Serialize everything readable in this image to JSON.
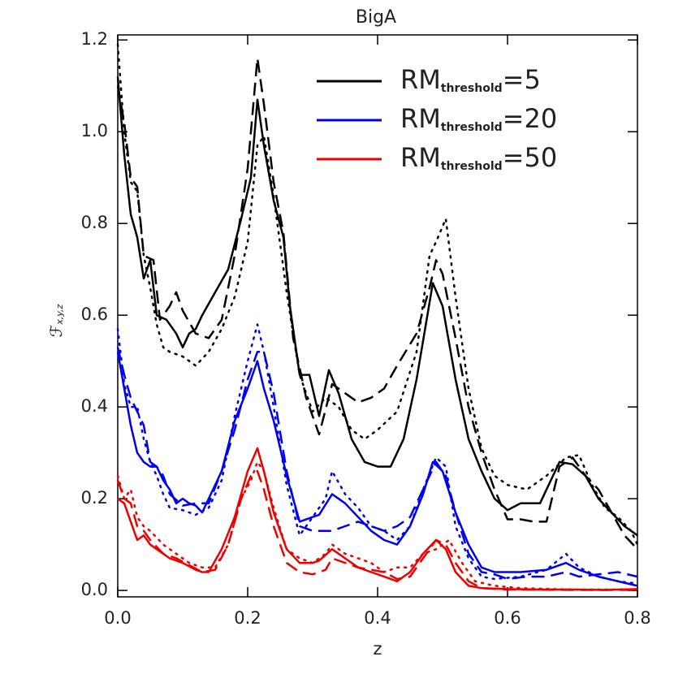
{
  "chart_data": {
    "type": "line",
    "title": "BigA",
    "xlabel": "z",
    "ylabel": [
      "ℱ",
      "x,y,z"
    ],
    "xlim": [
      0,
      0.8
    ],
    "xticks": [
      {
        "value": 0,
        "label": "0.0"
      },
      0.2,
      0.4,
      0.6,
      0.8
    ],
    "ylim": [
      -0.014,
      1.211
    ],
    "yticks": [
      {
        "value": 0,
        "label": "0.0"
      },
      0.2,
      0.4,
      0.6,
      0.8,
      {
        "value": 1,
        "label": "1.0"
      },
      1.2
    ],
    "grid": false,
    "legend": "upper right",
    "series": [
      {
        "name": [
          "RM",
          "threshold",
          "=5"
        ],
        "color": "#000000",
        "style": "solid",
        "x": [
          0,
          0.01,
          0.02,
          0.03,
          0.04,
          0.05,
          0.06,
          0.075,
          0.09,
          0.1,
          0.11,
          0.12,
          0.13,
          0.15,
          0.17,
          0.19,
          0.205,
          0.215,
          0.225,
          0.24,
          0.255,
          0.265,
          0.28,
          0.295,
          0.31,
          0.325,
          0.34,
          0.36,
          0.38,
          0.4,
          0.42,
          0.44,
          0.46,
          0.485,
          0.5,
          0.52,
          0.54,
          0.56,
          0.58,
          0.6,
          0.62,
          0.65,
          0.68,
          0.7,
          0.72,
          0.74,
          0.76,
          0.78,
          0.8
        ],
        "values": [
          1.12,
          0.95,
          0.82,
          0.77,
          0.68,
          0.72,
          0.6,
          0.59,
          0.56,
          0.53,
          0.56,
          0.57,
          0.6,
          0.65,
          0.7,
          0.81,
          0.9,
          1.07,
          0.97,
          0.85,
          0.77,
          0.62,
          0.47,
          0.47,
          0.38,
          0.48,
          0.43,
          0.33,
          0.28,
          0.27,
          0.27,
          0.33,
          0.46,
          0.67,
          0.62,
          0.46,
          0.33,
          0.26,
          0.2,
          0.175,
          0.19,
          0.19,
          0.28,
          0.275,
          0.25,
          0.2,
          0.17,
          0.14,
          0.12
        ]
      },
      {
        "color": "#000000",
        "style": "dashed",
        "x": [
          0,
          0.01,
          0.02,
          0.03,
          0.04,
          0.055,
          0.065,
          0.08,
          0.09,
          0.1,
          0.12,
          0.14,
          0.16,
          0.18,
          0.2,
          0.215,
          0.225,
          0.24,
          0.255,
          0.27,
          0.29,
          0.31,
          0.33,
          0.35,
          0.37,
          0.39,
          0.41,
          0.43,
          0.46,
          0.48,
          0.49,
          0.5,
          0.52,
          0.54,
          0.56,
          0.58,
          0.6,
          0.62,
          0.64,
          0.66,
          0.68,
          0.7,
          0.72,
          0.74,
          0.76,
          0.78,
          0.8
        ],
        "values": [
          1.1,
          1.02,
          0.9,
          0.88,
          0.73,
          0.72,
          0.59,
          0.62,
          0.65,
          0.61,
          0.56,
          0.55,
          0.59,
          0.73,
          0.92,
          1.16,
          1.06,
          0.89,
          0.78,
          0.55,
          0.42,
          0.34,
          0.45,
          0.43,
          0.41,
          0.42,
          0.44,
          0.49,
          0.56,
          0.66,
          0.72,
          0.69,
          0.55,
          0.4,
          0.3,
          0.22,
          0.155,
          0.155,
          0.15,
          0.15,
          0.27,
          0.29,
          0.25,
          0.22,
          0.17,
          0.12,
          0.09
        ]
      },
      {
        "color": "#000000",
        "style": "dotted",
        "x": [
          0,
          0.01,
          0.02,
          0.03,
          0.04,
          0.05,
          0.06,
          0.07,
          0.08,
          0.1,
          0.12,
          0.14,
          0.16,
          0.18,
          0.2,
          0.215,
          0.225,
          0.24,
          0.26,
          0.28,
          0.3,
          0.32,
          0.34,
          0.36,
          0.38,
          0.4,
          0.43,
          0.46,
          0.48,
          0.49,
          0.505,
          0.52,
          0.54,
          0.56,
          0.58,
          0.6,
          0.63,
          0.66,
          0.69,
          0.71,
          0.73,
          0.75,
          0.77,
          0.79,
          0.8
        ],
        "values": [
          1.19,
          1.0,
          0.89,
          0.87,
          0.73,
          0.66,
          0.58,
          0.53,
          0.52,
          0.51,
          0.49,
          0.52,
          0.57,
          0.64,
          0.76,
          0.97,
          0.99,
          0.86,
          0.65,
          0.47,
          0.39,
          0.42,
          0.4,
          0.35,
          0.33,
          0.35,
          0.39,
          0.52,
          0.73,
          0.76,
          0.81,
          0.64,
          0.44,
          0.31,
          0.25,
          0.23,
          0.22,
          0.25,
          0.29,
          0.295,
          0.23,
          0.18,
          0.16,
          0.13,
          0.1
        ]
      },
      {
        "name": [
          "RM",
          "threshold",
          "=20"
        ],
        "color": "#0000ee",
        "style": "solid",
        "x": [
          0,
          0.01,
          0.02,
          0.03,
          0.04,
          0.05,
          0.06,
          0.07,
          0.08,
          0.09,
          0.1,
          0.11,
          0.12,
          0.13,
          0.14,
          0.16,
          0.18,
          0.2,
          0.215,
          0.225,
          0.24,
          0.26,
          0.28,
          0.3,
          0.31,
          0.33,
          0.35,
          0.37,
          0.39,
          0.41,
          0.43,
          0.45,
          0.47,
          0.485,
          0.5,
          0.52,
          0.54,
          0.56,
          0.58,
          0.62,
          0.66,
          0.69,
          0.71,
          0.74,
          0.77,
          0.8
        ],
        "values": [
          0.52,
          0.44,
          0.36,
          0.3,
          0.28,
          0.27,
          0.27,
          0.24,
          0.22,
          0.19,
          0.2,
          0.19,
          0.185,
          0.17,
          0.2,
          0.26,
          0.37,
          0.44,
          0.5,
          0.44,
          0.37,
          0.25,
          0.15,
          0.16,
          0.165,
          0.21,
          0.19,
          0.16,
          0.13,
          0.11,
          0.1,
          0.14,
          0.21,
          0.28,
          0.26,
          0.17,
          0.1,
          0.05,
          0.04,
          0.04,
          0.045,
          0.06,
          0.045,
          0.03,
          0.02,
          0.01
        ]
      },
      {
        "color": "#0000ee",
        "style": "dashed",
        "x": [
          0,
          0.01,
          0.02,
          0.03,
          0.04,
          0.05,
          0.06,
          0.07,
          0.08,
          0.1,
          0.12,
          0.14,
          0.16,
          0.18,
          0.2,
          0.215,
          0.225,
          0.24,
          0.26,
          0.28,
          0.3,
          0.32,
          0.33,
          0.35,
          0.37,
          0.39,
          0.41,
          0.43,
          0.45,
          0.47,
          0.49,
          0.505,
          0.52,
          0.54,
          0.56,
          0.58,
          0.6,
          0.63,
          0.66,
          0.69,
          0.71,
          0.74,
          0.77,
          0.8
        ],
        "values": [
          0.53,
          0.47,
          0.42,
          0.39,
          0.36,
          0.28,
          0.27,
          0.25,
          0.21,
          0.185,
          0.19,
          0.19,
          0.26,
          0.35,
          0.46,
          0.52,
          0.52,
          0.43,
          0.26,
          0.14,
          0.13,
          0.13,
          0.13,
          0.14,
          0.15,
          0.14,
          0.13,
          0.14,
          0.16,
          0.22,
          0.28,
          0.25,
          0.17,
          0.08,
          0.04,
          0.035,
          0.025,
          0.03,
          0.03,
          0.04,
          0.03,
          0.035,
          0.04,
          0.03
        ]
      },
      {
        "color": "#0000ee",
        "style": "dotted",
        "x": [
          0,
          0.01,
          0.02,
          0.03,
          0.04,
          0.05,
          0.06,
          0.07,
          0.08,
          0.1,
          0.12,
          0.14,
          0.16,
          0.18,
          0.2,
          0.215,
          0.225,
          0.24,
          0.26,
          0.28,
          0.3,
          0.32,
          0.33,
          0.35,
          0.37,
          0.39,
          0.41,
          0.43,
          0.45,
          0.47,
          0.49,
          0.505,
          0.52,
          0.54,
          0.56,
          0.58,
          0.62,
          0.66,
          0.69,
          0.71,
          0.74,
          0.77,
          0.8
        ],
        "values": [
          0.57,
          0.45,
          0.4,
          0.4,
          0.33,
          0.28,
          0.25,
          0.21,
          0.18,
          0.175,
          0.165,
          0.18,
          0.24,
          0.38,
          0.5,
          0.58,
          0.52,
          0.4,
          0.23,
          0.12,
          0.16,
          0.2,
          0.26,
          0.21,
          0.18,
          0.14,
          0.13,
          0.11,
          0.14,
          0.22,
          0.29,
          0.27,
          0.14,
          0.07,
          0.03,
          0.025,
          0.03,
          0.045,
          0.08,
          0.05,
          0.03,
          0.02,
          0.015
        ]
      },
      {
        "name": [
          "RM",
          "threshold",
          "=50"
        ],
        "color": "#ee0000",
        "style": "solid",
        "x": [
          0,
          0.01,
          0.02,
          0.03,
          0.04,
          0.05,
          0.06,
          0.08,
          0.1,
          0.12,
          0.13,
          0.14,
          0.16,
          0.18,
          0.2,
          0.215,
          0.225,
          0.24,
          0.26,
          0.28,
          0.3,
          0.31,
          0.33,
          0.35,
          0.37,
          0.39,
          0.41,
          0.43,
          0.45,
          0.47,
          0.49,
          0.505,
          0.52,
          0.54,
          0.56,
          0.6,
          0.65,
          0.7,
          0.75,
          0.8
        ],
        "values": [
          0.2,
          0.19,
          0.15,
          0.11,
          0.12,
          0.1,
          0.09,
          0.07,
          0.06,
          0.045,
          0.04,
          0.04,
          0.09,
          0.16,
          0.26,
          0.31,
          0.26,
          0.17,
          0.09,
          0.06,
          0.06,
          0.065,
          0.09,
          0.07,
          0.05,
          0.04,
          0.03,
          0.02,
          0.04,
          0.08,
          0.11,
          0.09,
          0.04,
          0.01,
          0.005,
          0.003,
          0.002,
          0.002,
          0.001,
          0.003
        ]
      },
      {
        "color": "#ee0000",
        "style": "dashed",
        "x": [
          0,
          0.01,
          0.02,
          0.03,
          0.04,
          0.05,
          0.07,
          0.09,
          0.11,
          0.13,
          0.15,
          0.17,
          0.19,
          0.205,
          0.215,
          0.225,
          0.24,
          0.26,
          0.28,
          0.3,
          0.32,
          0.33,
          0.35,
          0.37,
          0.39,
          0.41,
          0.43,
          0.45,
          0.47,
          0.49,
          0.505,
          0.52,
          0.54,
          0.56,
          0.6,
          0.7,
          0.8
        ],
        "values": [
          0.24,
          0.2,
          0.19,
          0.14,
          0.13,
          0.11,
          0.08,
          0.07,
          0.055,
          0.04,
          0.045,
          0.1,
          0.2,
          0.25,
          0.26,
          0.22,
          0.14,
          0.06,
          0.04,
          0.035,
          0.045,
          0.07,
          0.06,
          0.05,
          0.045,
          0.04,
          0.025,
          0.03,
          0.07,
          0.11,
          0.1,
          0.06,
          0.02,
          0.005,
          0.002,
          0.001,
          0.001
        ]
      },
      {
        "color": "#ee0000",
        "style": "dotted",
        "x": [
          0,
          0.01,
          0.02,
          0.03,
          0.04,
          0.05,
          0.07,
          0.09,
          0.11,
          0.13,
          0.15,
          0.17,
          0.19,
          0.205,
          0.215,
          0.225,
          0.24,
          0.26,
          0.28,
          0.3,
          0.32,
          0.33,
          0.35,
          0.37,
          0.39,
          0.41,
          0.43,
          0.45,
          0.47,
          0.49,
          0.51,
          0.53,
          0.55,
          0.58,
          0.62,
          0.7,
          0.8
        ],
        "values": [
          0.25,
          0.2,
          0.22,
          0.16,
          0.14,
          0.13,
          0.1,
          0.08,
          0.06,
          0.05,
          0.05,
          0.1,
          0.2,
          0.24,
          0.28,
          0.26,
          0.18,
          0.09,
          0.07,
          0.06,
          0.08,
          0.1,
          0.08,
          0.07,
          0.06,
          0.04,
          0.05,
          0.05,
          0.08,
          0.09,
          0.11,
          0.06,
          0.02,
          0.01,
          0.005,
          0.002,
          0.002
        ]
      }
    ]
  }
}
